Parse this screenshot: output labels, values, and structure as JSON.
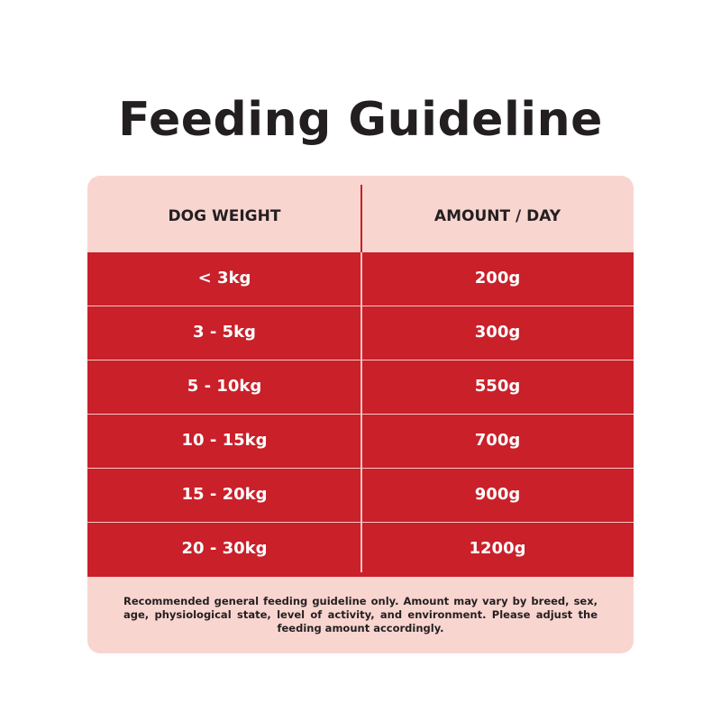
{
  "title": "Feeding Guideline",
  "colors": {
    "accent_red": "#c9202a",
    "card_pink": "#f9d5d0",
    "text_dark": "#231f20"
  },
  "table": {
    "headers": [
      "DOG WEIGHT",
      "AMOUNT / DAY"
    ],
    "rows": [
      {
        "weight": "< 3kg",
        "amount": "200g"
      },
      {
        "weight": "3 - 5kg",
        "amount": "300g"
      },
      {
        "weight": "5 - 10kg",
        "amount": "550g"
      },
      {
        "weight": "10 - 15kg",
        "amount": "700g"
      },
      {
        "weight": "15 - 20kg",
        "amount": "900g"
      },
      {
        "weight": "20 - 30kg",
        "amount": "1200g"
      }
    ]
  },
  "note": "Recommended general feeding guideline only. Amount may vary by breed, sex, age, physiological state, level of activity, and environment. Please adjust the feeding amount accordingly."
}
